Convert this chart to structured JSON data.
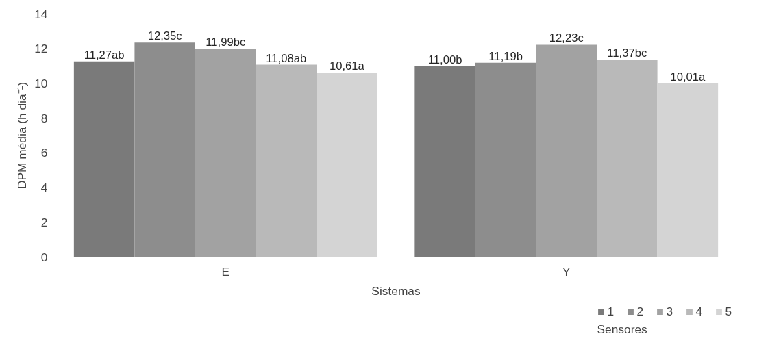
{
  "chart_data": {
    "type": "bar",
    "categories": [
      "E",
      "Y"
    ],
    "xlabel": "Sistemas",
    "ylabel": "DPM média (h dia⁻¹)",
    "legend_title": "Sensores",
    "ylim": [
      0,
      14
    ],
    "yticks": [
      0,
      2,
      4,
      6,
      8,
      10,
      12,
      14
    ],
    "grid": "y",
    "legend": "bottom right",
    "series": [
      {
        "name": "1",
        "color": "#7a7a7a",
        "values": [
          11.27,
          11.0
        ],
        "value_labels": [
          "11,27ab",
          "11,00b"
        ]
      },
      {
        "name": "2",
        "color": "#8d8d8d",
        "values": [
          12.35,
          11.19
        ],
        "value_labels": [
          "12,35c",
          "11,19b"
        ]
      },
      {
        "name": "3",
        "color": "#a2a2a2",
        "values": [
          11.99,
          12.23
        ],
        "value_labels": [
          "11,99bc",
          "12,23c"
        ]
      },
      {
        "name": "4",
        "color": "#b9b9b9",
        "values": [
          11.08,
          11.37
        ],
        "value_labels": [
          "11,08ab",
          "11,37bc"
        ]
      },
      {
        "name": "5",
        "color": "#d4d4d4",
        "values": [
          10.61,
          10.01
        ],
        "value_labels": [
          "10,61a",
          "10,01a"
        ]
      }
    ]
  }
}
